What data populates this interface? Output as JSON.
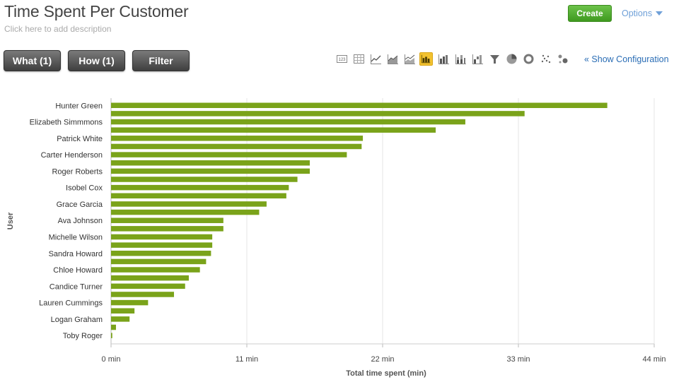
{
  "header": {
    "title": "Time Spent Per Customer",
    "description_placeholder": "Click here to add description",
    "create_label": "Create",
    "options_label": "Options"
  },
  "query_buttons": {
    "what_label": "What (1)",
    "how_label": "How (1)",
    "filter_label": "Filter"
  },
  "toolbar": {
    "icons": [
      "number-icon",
      "table-icon",
      "line-chart-icon",
      "area-chart-icon",
      "stacked-area-icon",
      "bar-chart-icon",
      "column-chart-icon",
      "stacked-column-icon",
      "waterfall-icon",
      "funnel-icon",
      "pie-chart-icon",
      "donut-chart-icon",
      "scatter-icon",
      "bubble-icon"
    ],
    "active": "bar-chart-icon",
    "show_config_label": "« Show Configuration"
  },
  "chart_data": {
    "type": "bar",
    "orientation": "horizontal",
    "xlabel": "Total time spent (min)",
    "ylabel": "User",
    "xlim": [
      0,
      44
    ],
    "xticks": [
      "0 min",
      "11 min",
      "22 min",
      "33 min",
      "44 min"
    ],
    "bar_color": "#7aa31a",
    "grid": true,
    "categories": [
      "Hunter Green",
      "",
      "Elizabeth Simmmons",
      "",
      "Patrick White",
      "",
      "Carter Henderson",
      "",
      "Roger Roberts",
      "",
      "Isobel Cox",
      "",
      "Grace Garcia",
      "",
      "Ava Johnson",
      "",
      "Michelle Wilson",
      "",
      "Sandra Howard",
      "",
      "Chloe Howard",
      "",
      "Candice Turner",
      "",
      "Lauren Cummings",
      "",
      "Logan Graham",
      "",
      "Toby Roger"
    ],
    "values": [
      40.2,
      33.5,
      28.7,
      26.3,
      20.4,
      20.3,
      19.1,
      16.1,
      16.1,
      15.1,
      14.4,
      14.2,
      12.6,
      12.0,
      9.1,
      9.1,
      8.2,
      8.2,
      8.1,
      7.7,
      7.2,
      6.3,
      6.0,
      5.1,
      3.0,
      1.9,
      1.5,
      0.4,
      0.1
    ]
  }
}
